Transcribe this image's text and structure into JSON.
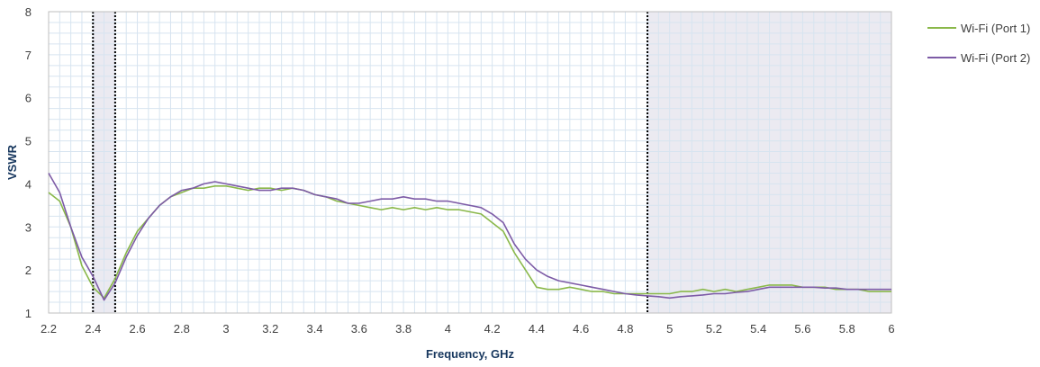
{
  "chart_data": {
    "type": "line",
    "title": "",
    "xlabel": "Frequency, GHz",
    "ylabel": "VSWR",
    "xlim": [
      2.2,
      6
    ],
    "ylim": [
      1,
      8
    ],
    "x_ticks": [
      "2.2",
      "2.4",
      "2.6",
      "2.8",
      "3",
      "3.2",
      "3.4",
      "3.6",
      "3.8",
      "4",
      "4.2",
      "4.4",
      "4.6",
      "4.8",
      "5",
      "5.2",
      "5.4",
      "5.6",
      "5.8",
      "6"
    ],
    "y_ticks": [
      "1",
      "2",
      "3",
      "4",
      "5",
      "6",
      "7",
      "8"
    ],
    "grid": true,
    "legend_position": "right",
    "shaded_bands": [
      {
        "from": 2.4,
        "to": 2.5
      },
      {
        "from": 4.9,
        "to": 6.0
      }
    ],
    "series": [
      {
        "name": "Wi-Fi (Port 1)",
        "color": "#8ab84a",
        "x": [
          2.2,
          2.25,
          2.3,
          2.35,
          2.4,
          2.45,
          2.5,
          2.55,
          2.6,
          2.65,
          2.7,
          2.75,
          2.8,
          2.85,
          2.9,
          2.95,
          3.0,
          3.05,
          3.1,
          3.15,
          3.2,
          3.25,
          3.3,
          3.35,
          3.4,
          3.45,
          3.5,
          3.55,
          3.6,
          3.65,
          3.7,
          3.75,
          3.8,
          3.85,
          3.9,
          3.95,
          4.0,
          4.05,
          4.1,
          4.15,
          4.2,
          4.25,
          4.3,
          4.35,
          4.4,
          4.45,
          4.5,
          4.55,
          4.6,
          4.65,
          4.7,
          4.75,
          4.8,
          4.85,
          4.9,
          4.95,
          5.0,
          5.05,
          5.1,
          5.15,
          5.2,
          5.25,
          5.3,
          5.35,
          5.4,
          5.45,
          5.5,
          5.55,
          5.6,
          5.65,
          5.7,
          5.75,
          5.8,
          5.85,
          5.9,
          5.95,
          6.0
        ],
        "values": [
          3.8,
          3.6,
          3.0,
          2.1,
          1.6,
          1.35,
          1.8,
          2.4,
          2.9,
          3.2,
          3.5,
          3.7,
          3.8,
          3.9,
          3.9,
          3.95,
          3.95,
          3.9,
          3.85,
          3.9,
          3.9,
          3.85,
          3.9,
          3.85,
          3.75,
          3.7,
          3.6,
          3.55,
          3.5,
          3.45,
          3.4,
          3.45,
          3.4,
          3.45,
          3.4,
          3.45,
          3.4,
          3.4,
          3.35,
          3.3,
          3.1,
          2.9,
          2.4,
          2.0,
          1.6,
          1.55,
          1.55,
          1.6,
          1.55,
          1.5,
          1.5,
          1.45,
          1.45,
          1.45,
          1.45,
          1.45,
          1.45,
          1.5,
          1.5,
          1.55,
          1.5,
          1.55,
          1.5,
          1.55,
          1.6,
          1.65,
          1.65,
          1.65,
          1.6,
          1.6,
          1.6,
          1.55,
          1.55,
          1.55,
          1.5,
          1.5,
          1.5
        ]
      },
      {
        "name": "Wi-Fi (Port 2)",
        "color": "#7d5ba6",
        "x": [
          2.2,
          2.25,
          2.3,
          2.35,
          2.4,
          2.45,
          2.5,
          2.55,
          2.6,
          2.65,
          2.7,
          2.75,
          2.8,
          2.85,
          2.9,
          2.95,
          3.0,
          3.05,
          3.1,
          3.15,
          3.2,
          3.25,
          3.3,
          3.35,
          3.4,
          3.45,
          3.5,
          3.55,
          3.6,
          3.65,
          3.7,
          3.75,
          3.8,
          3.85,
          3.9,
          3.95,
          4.0,
          4.05,
          4.1,
          4.15,
          4.2,
          4.25,
          4.3,
          4.35,
          4.4,
          4.45,
          4.5,
          4.55,
          4.6,
          4.65,
          4.7,
          4.75,
          4.8,
          4.85,
          4.9,
          4.95,
          5.0,
          5.05,
          5.1,
          5.15,
          5.2,
          5.25,
          5.3,
          5.35,
          5.4,
          5.45,
          5.5,
          5.55,
          5.6,
          5.65,
          5.7,
          5.75,
          5.8,
          5.85,
          5.9,
          5.95,
          6.0
        ],
        "values": [
          4.25,
          3.8,
          3.0,
          2.3,
          1.85,
          1.3,
          1.7,
          2.3,
          2.8,
          3.2,
          3.5,
          3.7,
          3.85,
          3.9,
          4.0,
          4.05,
          4.0,
          3.95,
          3.9,
          3.85,
          3.85,
          3.9,
          3.9,
          3.85,
          3.75,
          3.7,
          3.65,
          3.55,
          3.55,
          3.6,
          3.65,
          3.65,
          3.7,
          3.65,
          3.65,
          3.6,
          3.6,
          3.55,
          3.5,
          3.45,
          3.3,
          3.1,
          2.6,
          2.25,
          2.0,
          1.85,
          1.75,
          1.7,
          1.65,
          1.6,
          1.55,
          1.5,
          1.45,
          1.42,
          1.4,
          1.38,
          1.35,
          1.38,
          1.4,
          1.42,
          1.45,
          1.45,
          1.48,
          1.5,
          1.55,
          1.6,
          1.6,
          1.6,
          1.6,
          1.6,
          1.58,
          1.58,
          1.55,
          1.55,
          1.55,
          1.55,
          1.55
        ]
      }
    ]
  }
}
